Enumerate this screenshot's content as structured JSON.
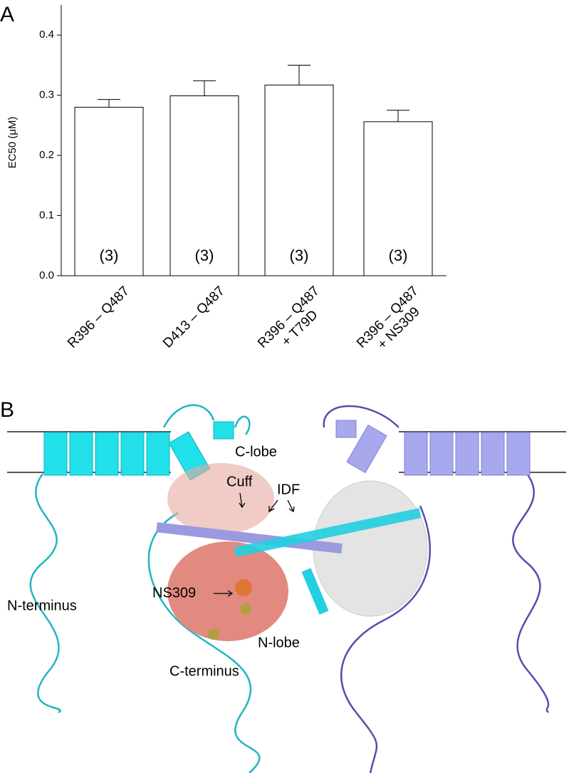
{
  "chart_data": {
    "type": "bar",
    "panel_label": "A",
    "ylabel": "EC50 (μM)",
    "categories": [
      "R396 – Q487",
      "D413 – Q487",
      "R396 – Q487\n+ T79D",
      "R396 – Q487\n+ NS309"
    ],
    "values": [
      0.28,
      0.299,
      0.317,
      0.256
    ],
    "errors": [
      0.013,
      0.025,
      0.033,
      0.019
    ],
    "annotations": [
      "(3)",
      "(3)",
      "(3)",
      "(3)"
    ],
    "color": "#ffffff",
    "ylim": [
      0,
      0.45
    ],
    "yticks": [
      {
        "value": 0,
        "label": "0.0"
      },
      0.1,
      0.2,
      0.3,
      0.4
    ],
    "grid": false
  },
  "diagram": {
    "panel_label": "B",
    "labels": [
      "C-lobe",
      "Cuff",
      "IDF",
      "NS309",
      "N-terminus",
      "N-lobe",
      "C-terminus"
    ]
  }
}
